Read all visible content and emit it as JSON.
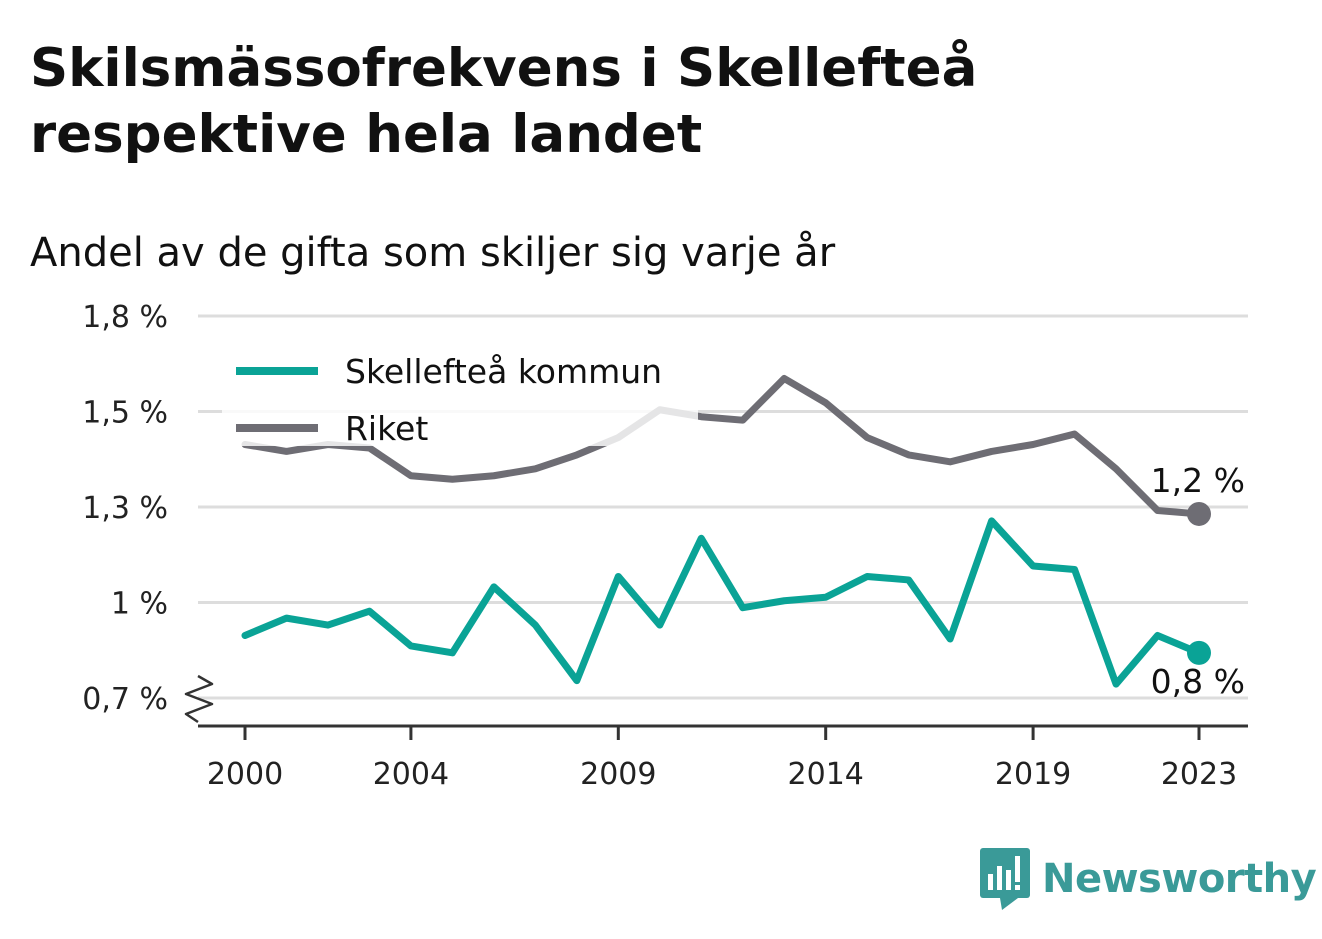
{
  "title": "Skilsmässofrekvens i Skellefteå respektive hela landet",
  "subtitle": "Andel av de gifta som skiljer sig varje år",
  "brand": "Newsworthy",
  "colors": {
    "skelleftea": "#0aa396",
    "riket": "#6e6d74",
    "grid": "#dddddd",
    "axis": "#333333",
    "brand": "#3a9a98"
  },
  "chart_data": {
    "type": "line",
    "x": [
      2000,
      2001,
      2002,
      2003,
      2004,
      2005,
      2006,
      2007,
      2008,
      2009,
      2010,
      2011,
      2012,
      2013,
      2014,
      2015,
      2016,
      2017,
      2018,
      2019,
      2020,
      2021,
      2022,
      2023
    ],
    "x_tick_labels": [
      "2000",
      "2004",
      "2009",
      "2014",
      "2019",
      "2023"
    ],
    "y_tick_labels": [
      "0,7 %",
      "1 %",
      "1,3 %",
      "1,5 %",
      "1,8 %"
    ],
    "ylim": [
      0.7,
      1.8
    ],
    "y_axis_break": true,
    "grid": true,
    "legend_position": "top-left",
    "series": [
      {
        "name": "Skellefteå kommun",
        "color_key": "skelleftea",
        "values": [
          0.88,
          0.93,
          0.91,
          0.95,
          0.85,
          0.83,
          1.02,
          0.91,
          0.75,
          1.05,
          0.91,
          1.16,
          0.96,
          0.98,
          0.99,
          1.05,
          1.04,
          0.87,
          1.21,
          1.08,
          1.07,
          0.74,
          0.88,
          0.83
        ],
        "end_label": "0,8 %"
      },
      {
        "name": "Riket",
        "color_key": "riket",
        "values": [
          1.43,
          1.41,
          1.43,
          1.42,
          1.34,
          1.33,
          1.34,
          1.36,
          1.4,
          1.45,
          1.53,
          1.51,
          1.5,
          1.62,
          1.55,
          1.45,
          1.4,
          1.38,
          1.41,
          1.43,
          1.46,
          1.36,
          1.24,
          1.23
        ],
        "end_label": "1,2 %"
      }
    ]
  }
}
